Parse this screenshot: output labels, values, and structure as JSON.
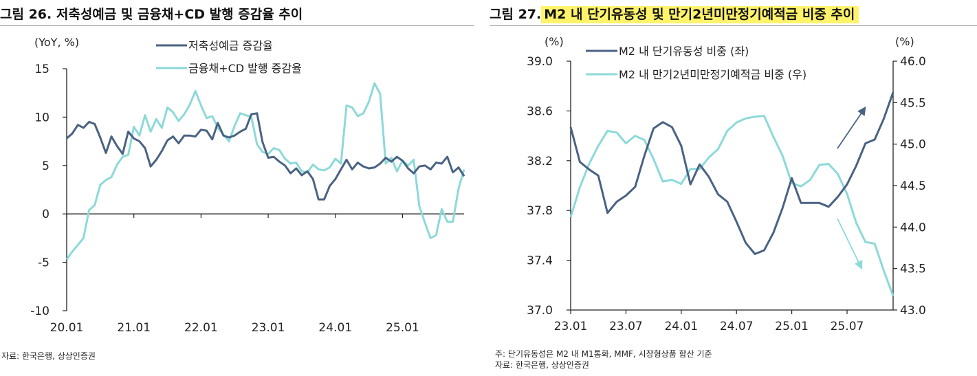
{
  "colors": {
    "dark": "#4a6282",
    "light": "#8dd9d9",
    "highlight": "#fff36b",
    "axis": "#222222"
  },
  "left": {
    "title_prefix": "그림 26.",
    "title_text": "저축성예금 및 금융채+CD 발행 증감율 추이",
    "source": "자료: 한국은행, 상상인증권"
  },
  "right": {
    "title_prefix": "그림 27.",
    "title_text": "M2 내 단기유동성 및 만기2년미만정기예적금 비중 추이",
    "note": "주: 단기유동성은 M2 내 M1통화, MMF, 시장형상품 합산 기준",
    "source": "자료: 한국은행, 상상인증권"
  },
  "chart_data": [
    {
      "type": "line",
      "unit_label": "(YoY, %)",
      "ylim": [
        -10,
        15
      ],
      "yticks": [
        -10,
        -5,
        0,
        5,
        10,
        15
      ],
      "ytick_labels": [
        "-10",
        "-5",
        "0",
        "5",
        "10",
        "15"
      ],
      "xlim": [
        0,
        71
      ],
      "xticks": [
        0,
        12,
        24,
        36,
        48,
        60
      ],
      "xtick_labels": [
        "20.01",
        "21.01",
        "22.01",
        "23.01",
        "24.01",
        "25.01"
      ],
      "legend_position": "top",
      "series": [
        {
          "name": "저축성예금 증감율",
          "color": "#4a6282",
          "values": [
            7.8,
            8.3,
            9.2,
            8.9,
            9.5,
            9.3,
            7.9,
            6.3,
            8.0,
            7.0,
            6.2,
            8.5,
            7.8,
            7.5,
            6.8,
            4.9,
            5.6,
            6.5,
            7.6,
            8.0,
            7.3,
            8.1,
            8.1,
            8.0,
            8.7,
            8.6,
            7.7,
            9.4,
            8.1,
            7.9,
            8.1,
            8.5,
            8.8,
            10.3,
            10.4,
            7.4,
            5.8,
            5.9,
            5.4,
            5.0,
            4.2,
            4.7,
            4.0,
            4.4,
            3.6,
            1.5,
            1.5,
            2.9,
            3.6,
            4.6,
            5.6,
            4.6,
            5.3,
            4.9,
            4.7,
            4.8,
            5.2,
            5.8,
            5.4,
            5.9,
            5.5,
            4.7,
            4.2,
            4.9,
            5.0,
            4.6,
            5.3,
            5.2,
            5.9,
            4.3,
            4.8,
            3.9
          ]
        },
        {
          "name": "금융채+CD 발행 증감율",
          "color": "#8dd9d9",
          "values": [
            -4.7,
            -3.9,
            -3.2,
            -2.5,
            0.4,
            0.9,
            3.0,
            3.5,
            3.8,
            5.1,
            5.9,
            6.1,
            9.0,
            8.1,
            10.2,
            8.5,
            9.8,
            8.9,
            11.0,
            10.5,
            9.6,
            10.3,
            11.3,
            12.7,
            11.2,
            9.9,
            10.1,
            8.9,
            8.2,
            7.5,
            9.1,
            10.4,
            10.2,
            10.0,
            7.2,
            6.4,
            6.2,
            6.8,
            6.6,
            5.7,
            5.2,
            5.3,
            4.4,
            4.3,
            5.1,
            4.6,
            4.5,
            4.8,
            5.7,
            5.2,
            11.2,
            11.0,
            10.1,
            10.4,
            11.6,
            13.5,
            12.4,
            5.2,
            5.8,
            4.4,
            5.5,
            5.0,
            5.6,
            0.8,
            -0.9,
            -2.5,
            -2.2,
            0.5,
            -0.8,
            -0.8,
            2.6,
            4.6
          ]
        }
      ]
    },
    {
      "type": "line",
      "unit_label_left": "(%)",
      "unit_label_right": "(%)",
      "ylim_left": [
        37.0,
        39.0
      ],
      "yticks_left": [
        37.0,
        37.4,
        37.8,
        38.2,
        38.6,
        39.0
      ],
      "ytick_labels_left": [
        "37.0",
        "37.4",
        "37.8",
        "38.2",
        "38.6",
        "39.0"
      ],
      "ylim_right": [
        43.0,
        46.0
      ],
      "yticks_right": [
        43.0,
        43.5,
        44.0,
        44.5,
        45.0,
        45.5,
        46.0
      ],
      "ytick_labels_right": [
        "43.0",
        "43.5",
        "44.0",
        "44.5",
        "45.0",
        "45.5",
        "46.0"
      ],
      "xlim": [
        0,
        32
      ],
      "xticks": [
        0,
        6,
        12,
        18,
        24,
        30
      ],
      "xtick_labels": [
        "23.01",
        "23.07",
        "24.01",
        "24.07",
        "25.01",
        "25.07"
      ],
      "legend_position": "top-left",
      "series": [
        {
          "name": "M2 내 단기유동성 비중 (좌)",
          "axis": "left",
          "color": "#4a6282",
          "values": [
            38.47,
            38.19,
            38.13,
            38.08,
            37.78,
            37.87,
            37.92,
            37.99,
            38.24,
            38.46,
            38.51,
            38.47,
            38.32,
            38.01,
            38.17,
            38.07,
            37.93,
            37.87,
            37.71,
            37.54,
            37.45,
            37.48,
            37.62,
            37.82,
            38.06,
            37.86,
            37.86,
            37.86,
            37.83,
            37.91,
            38.01,
            38.16,
            38.34,
            38.37,
            38.54,
            38.75
          ]
        },
        {
          "name": "M2 내 만기2년미만정기예적금  비중 (우)",
          "axis": "right",
          "color": "#8dd9d9",
          "values": [
            44.12,
            44.48,
            44.76,
            44.98,
            45.16,
            45.14,
            45.01,
            45.1,
            45.05,
            44.82,
            44.55,
            44.57,
            44.52,
            44.7,
            44.7,
            44.84,
            44.94,
            45.16,
            45.26,
            45.31,
            45.33,
            45.34,
            45.09,
            44.86,
            44.53,
            44.49,
            44.57,
            44.75,
            44.76,
            44.64,
            44.4,
            44.05,
            43.82,
            43.8,
            43.47,
            43.17
          ]
        }
      ],
      "annotations": [
        {
          "type": "arrow",
          "direction": "up",
          "color": "#4a6282"
        },
        {
          "type": "arrow",
          "direction": "down",
          "color": "#8dd9d9"
        }
      ]
    }
  ]
}
